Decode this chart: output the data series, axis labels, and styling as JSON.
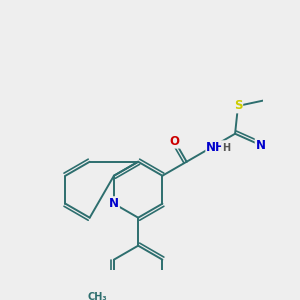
{
  "bg_color": "#eeeeee",
  "bond_color": "#2d6e6e",
  "bond_width": 1.4,
  "dbo": 0.055,
  "atom_colors": {
    "N": "#0000cc",
    "O": "#cc0000",
    "S": "#cccc00",
    "C": "#2d6e6e"
  },
  "font_size": 8.5,
  "xlim": [
    -2.4,
    1.8
  ],
  "ylim": [
    -2.8,
    2.2
  ]
}
